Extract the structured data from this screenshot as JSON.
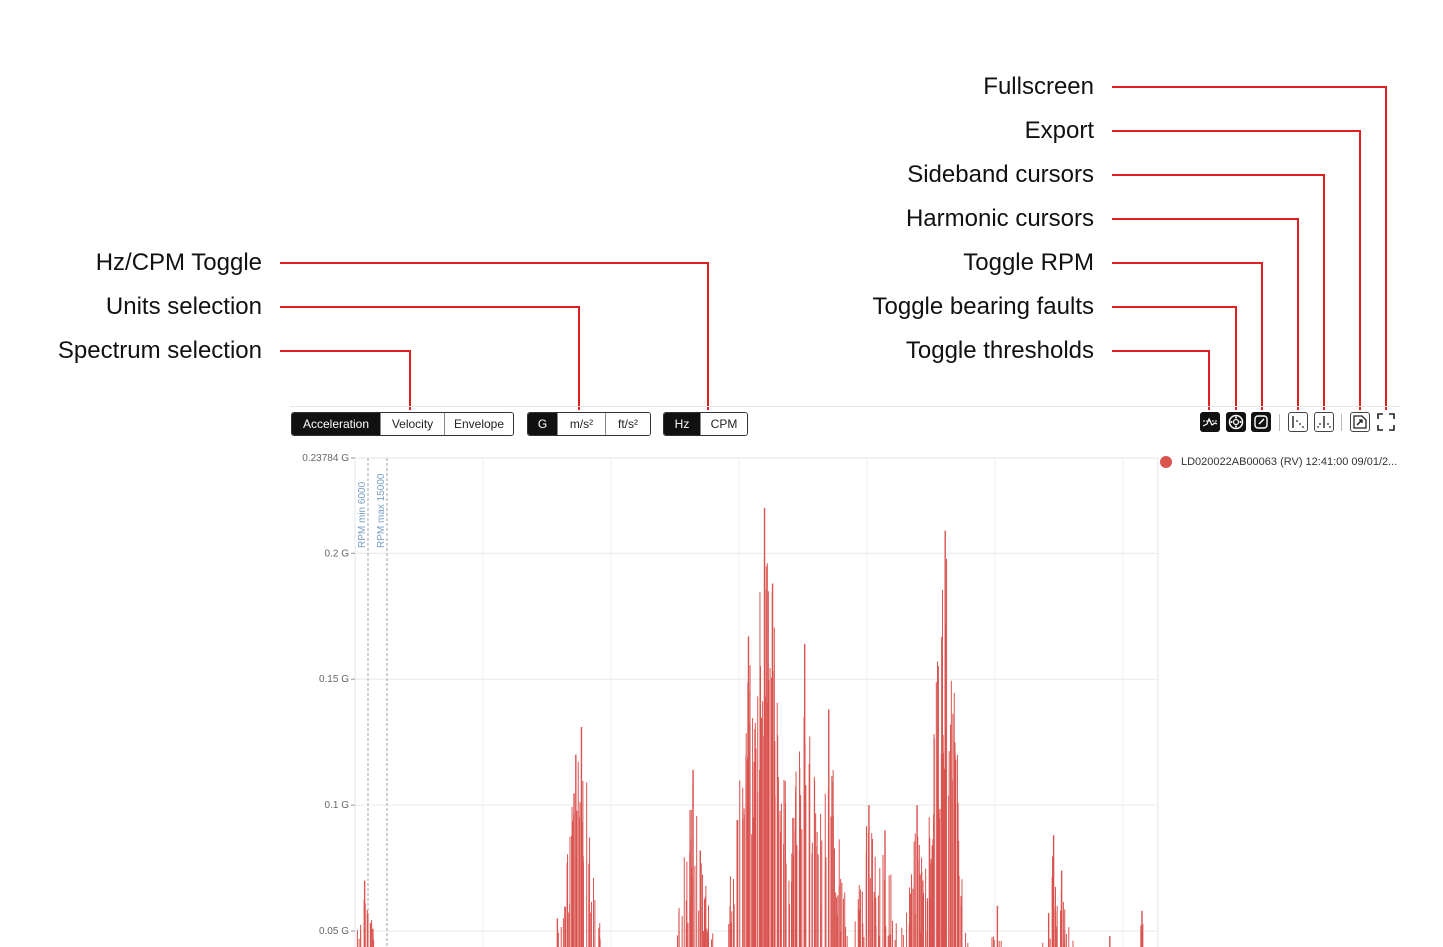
{
  "callouts": {
    "fullscreen": "Fullscreen",
    "export": "Export",
    "sideband": "Sideband cursors",
    "harmonic": "Harmonic cursors",
    "rpm": "Toggle RPM",
    "bearing": "Toggle bearing faults",
    "thresholds": "Toggle thresholds",
    "hzcpm": "Hz/CPM Toggle",
    "units": "Units selection",
    "spectrum": "Spectrum selection"
  },
  "toolbar": {
    "spectrum_options": [
      "Acceleration",
      "Velocity",
      "Envelope"
    ],
    "spectrum_selected": "Acceleration",
    "unit_options": [
      "G",
      "m/s²",
      "ft/s²"
    ],
    "unit_selected": "G",
    "freq_options": [
      "Hz",
      "CPM"
    ],
    "freq_selected": "Hz",
    "icons": [
      "thresholds-icon",
      "bearing-faults-icon",
      "rpm-icon",
      "harmonic-cursor-icon",
      "sideband-cursor-icon",
      "export-icon",
      "fullscreen-icon"
    ]
  },
  "chart_data": {
    "type": "bar",
    "y_ticks": [
      {
        "label": "0.23784 G",
        "value": 0.23784
      },
      {
        "label": "0.2 G",
        "value": 0.2
      },
      {
        "label": "0.15 G",
        "value": 0.15
      },
      {
        "label": "0.1 G",
        "value": 0.1
      },
      {
        "label": "0.05 G",
        "value": 0.05
      }
    ],
    "ylim": [
      0.05,
      0.23784
    ],
    "rpm_markers": [
      "RPM min 6000",
      "RPM max 15000"
    ],
    "legend": "LD020022AB00063 (RV) 12:41:00 09/01/2...",
    "series_color": "#d9534f",
    "peaks": [
      {
        "x": 0.012,
        "value": 0.07
      },
      {
        "x": 0.252,
        "value": 0.055
      },
      {
        "x": 0.275,
        "value": 0.12
      },
      {
        "x": 0.282,
        "value": 0.131
      },
      {
        "x": 0.421,
        "value": 0.114
      },
      {
        "x": 0.43,
        "value": 0.082
      },
      {
        "x": 0.49,
        "value": 0.167
      },
      {
        "x": 0.51,
        "value": 0.218
      },
      {
        "x": 0.52,
        "value": 0.188
      },
      {
        "x": 0.56,
        "value": 0.164
      },
      {
        "x": 0.59,
        "value": 0.138
      },
      {
        "x": 0.64,
        "value": 0.1
      },
      {
        "x": 0.66,
        "value": 0.09
      },
      {
        "x": 0.7,
        "value": 0.1
      },
      {
        "x": 0.735,
        "value": 0.209
      },
      {
        "x": 0.8,
        "value": 0.06
      },
      {
        "x": 0.87,
        "value": 0.088
      },
      {
        "x": 0.88,
        "value": 0.074
      },
      {
        "x": 0.94,
        "value": 0.048
      },
      {
        "x": 0.98,
        "value": 0.058
      }
    ]
  }
}
